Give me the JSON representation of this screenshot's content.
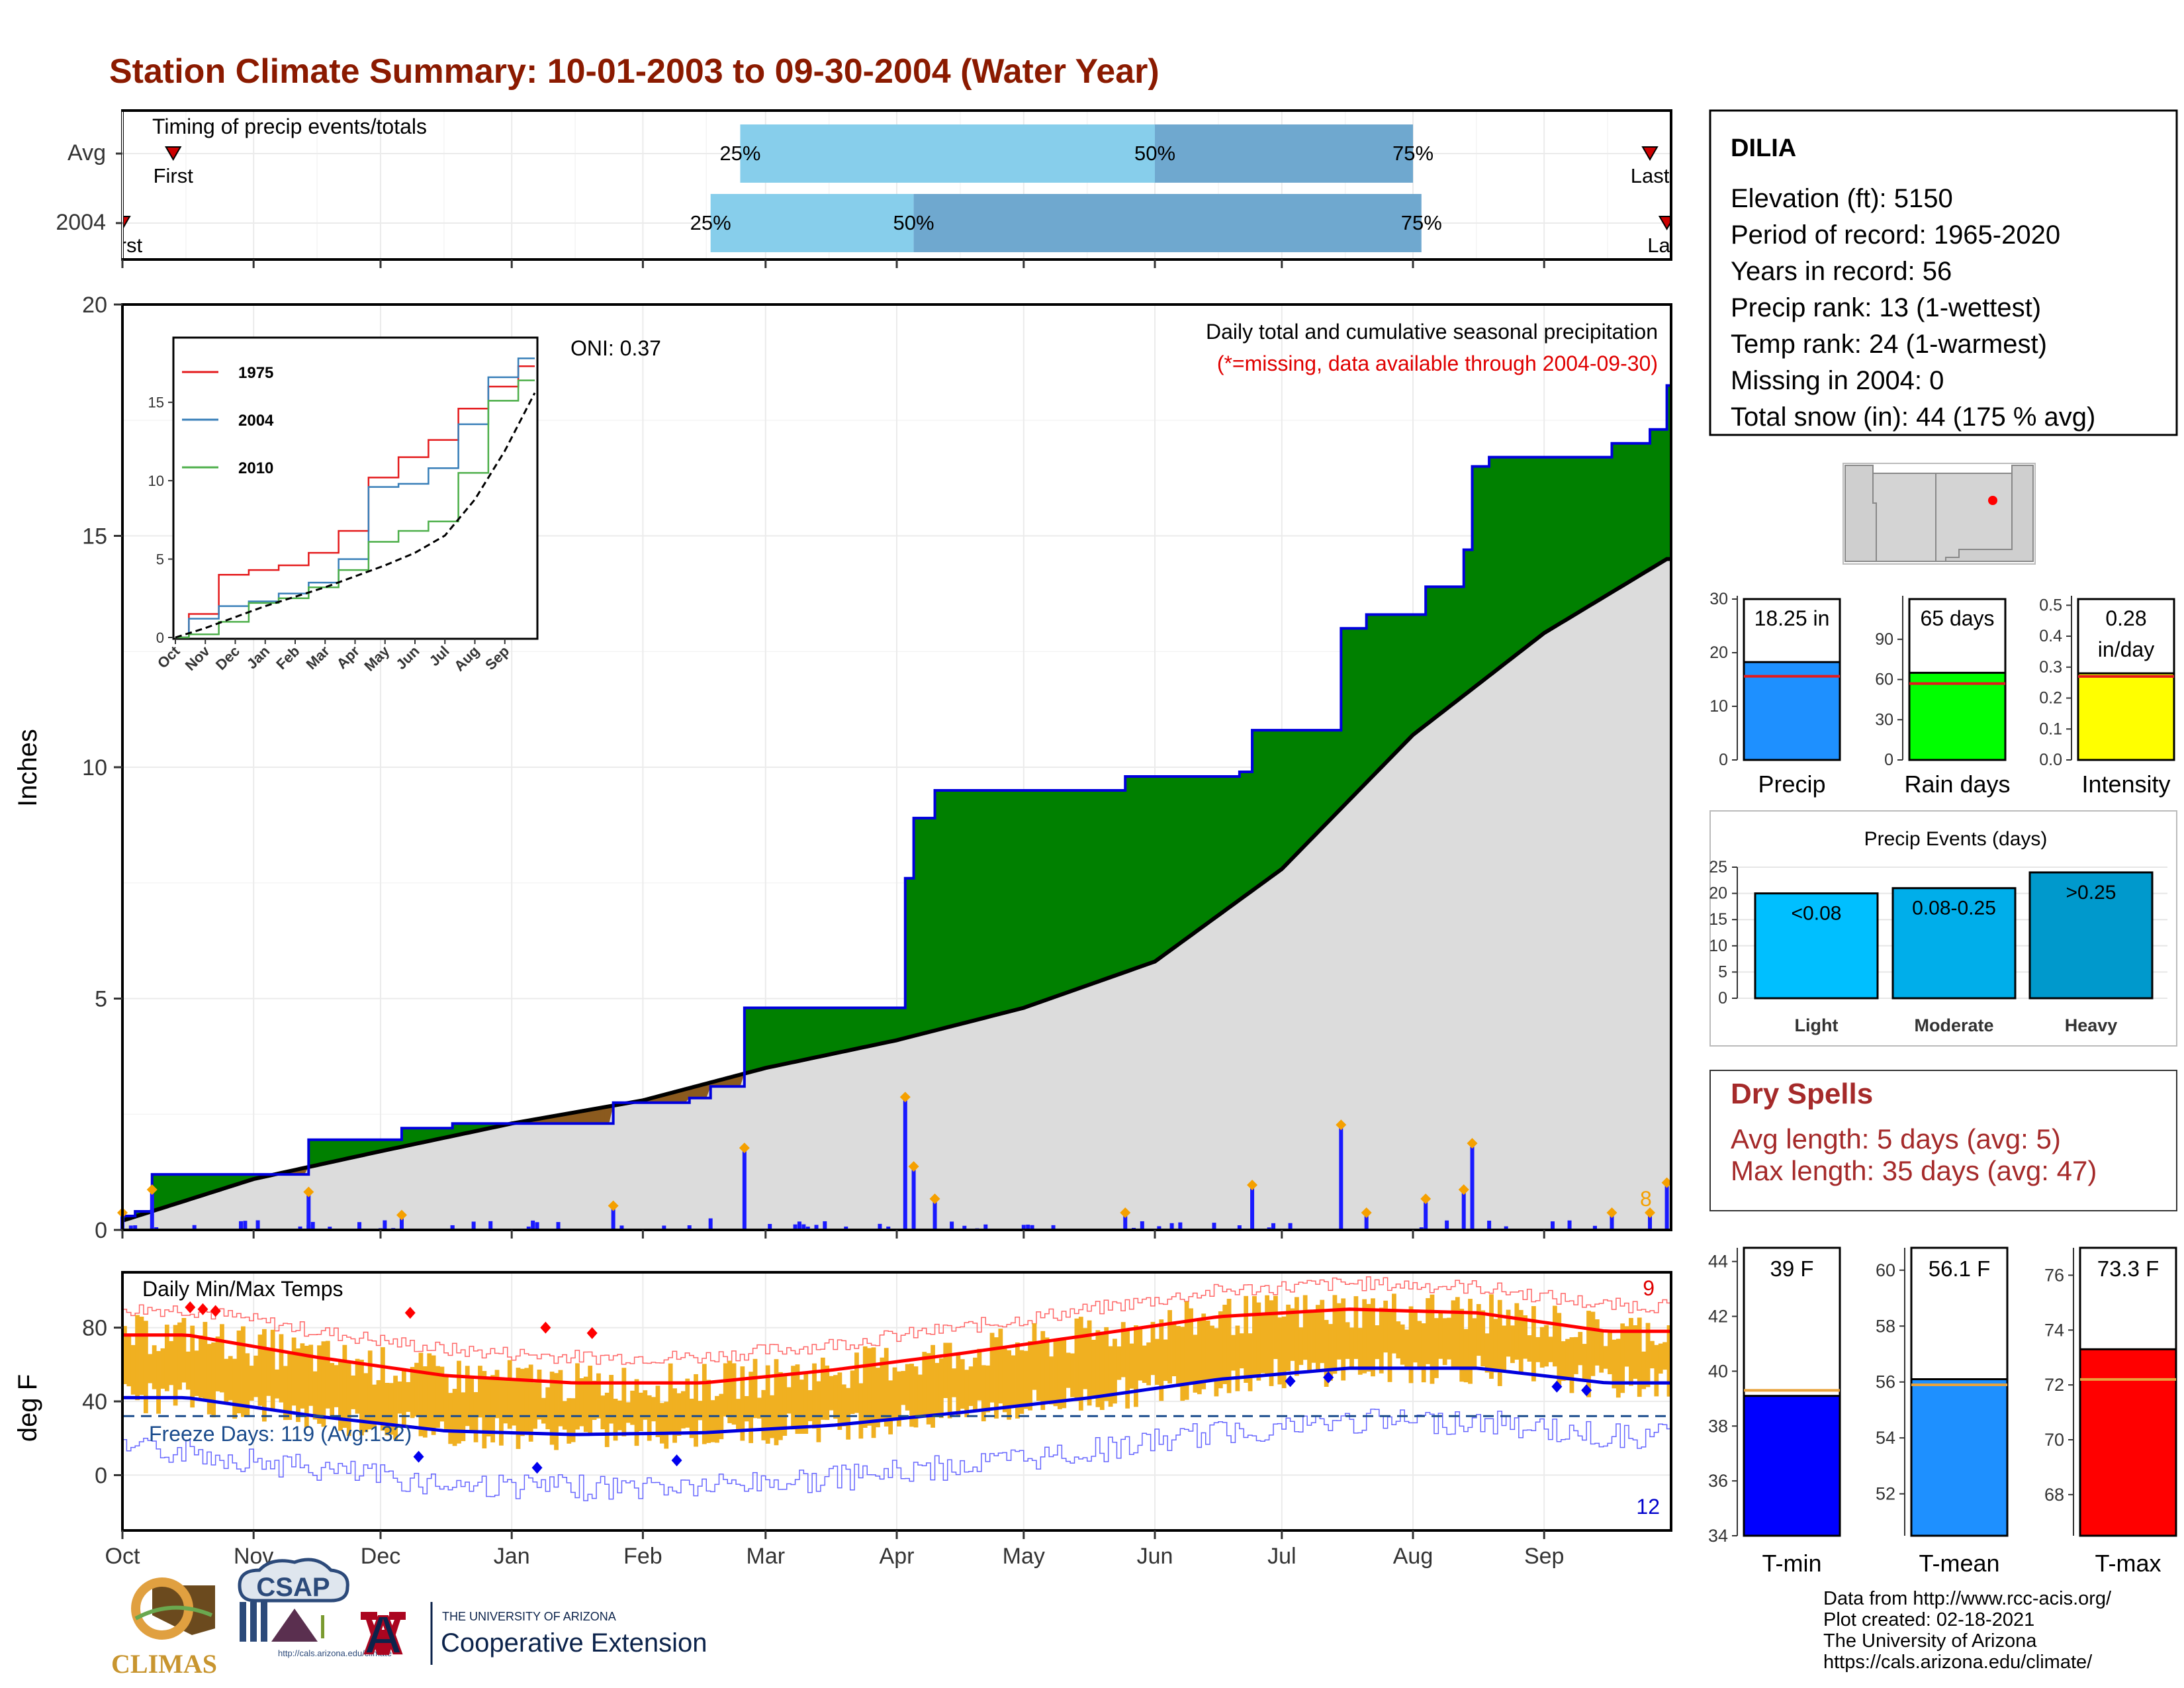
{
  "title": "Station Climate Summary: 10-01-2003 to 09-30-2004 (Water Year)",
  "timing": {
    "label": "Timing of precip events/totals",
    "rows": [
      {
        "name": "Avg",
        "first_label": "First",
        "last_label": "Last",
        "p25": "25%",
        "p50": "50%",
        "p75": "75%",
        "first": "Oct 13",
        "d25": "Feb 24",
        "d50": "Jun 1",
        "d75": "Aug 1",
        "last": "Sep 26"
      },
      {
        "name": "2004",
        "first_label": "First",
        "last_label": "Last",
        "p25": "25%",
        "p50": "50%",
        "p75": "75%",
        "first": "Oct 1",
        "d25": "Feb 17",
        "d50": "Apr 5",
        "d75": "Aug 3",
        "last": "Sep 30"
      }
    ],
    "colors": {
      "light": "#87ceeb",
      "dark": "#6fa8cf",
      "marker": "#cc0000"
    }
  },
  "month_labels": [
    "Oct",
    "Nov",
    "Dec",
    "Jan",
    "Feb",
    "Mar",
    "Apr",
    "May",
    "Jun",
    "Jul",
    "Aug",
    "Sep"
  ],
  "precip_panel": {
    "ylabel": "Inches",
    "title1": "Daily total and cumulative seasonal precipitation",
    "title2": "(*=missing, data available through 2004-09-30)",
    "oni": "ONI: 0.37",
    "count_label": "8",
    "yticks": [
      "0",
      "5",
      "10",
      "15",
      "20"
    ],
    "colors": {
      "green": "#008000",
      "brown": "#8b5a1e",
      "grey": "#dcdcdc",
      "line": "#0000dd",
      "bar": "#1a1aff"
    }
  },
  "inset": {
    "legend": [
      {
        "name": "1975",
        "color": "#e41a1c"
      },
      {
        "name": "2004",
        "color": "#377eb8"
      },
      {
        "name": "2010",
        "color": "#4daf4a"
      }
    ],
    "yticks": [
      "0",
      "5",
      "10",
      "15"
    ],
    "xticks": [
      "Oct",
      "Nov",
      "Dec",
      "Jan",
      "Feb",
      "Mar",
      "Apr",
      "May",
      "Jun",
      "Jul",
      "Aug",
      "Sep"
    ]
  },
  "temp_panel": {
    "ylabel": "deg F",
    "title": "Daily Min/Max Temps",
    "freeze": "Freeze Days: 119 (Avg:132)",
    "count_high": "9",
    "count_low": "12",
    "yticks": [
      "0",
      "40",
      "80"
    ]
  },
  "station": {
    "name": "DILIA",
    "lines": [
      "Elevation (ft): 5150",
      "Period of record: 1965-2020",
      "Years in record: 56",
      "Precip rank: 13 (1-wettest)",
      "Temp rank: 24 (1-warmest)",
      "Missing in 2004: 0",
      "Total snow (in): 44 (175 % avg)"
    ]
  },
  "mini_bars": [
    {
      "label": "Precip",
      "value_text": "18.25 in",
      "value": 18.25,
      "avg": 15.6,
      "ymax": 30,
      "ticks": [
        "0",
        "10",
        "20",
        "30"
      ],
      "color": "#1e90ff"
    },
    {
      "label": "Rain days",
      "value_text": "65 days",
      "value": 65,
      "avg": 57,
      "ymax": 120,
      "ticks": [
        "0",
        "30",
        "60",
        "90"
      ],
      "color": "#00ff00"
    },
    {
      "label": "Intensity",
      "value_text": "0.28 in/day",
      "value_line1": "0.28",
      "value_line2": "in/day",
      "value": 0.28,
      "avg": 0.27,
      "ymax": 0.52,
      "ticks": [
        "0.0",
        "0.1",
        "0.2",
        "0.3",
        "0.4",
        "0.5"
      ],
      "color": "#ffff00"
    }
  ],
  "events": {
    "title": "Precip Events (days)",
    "yticks": [
      "0",
      "5",
      "10",
      "15",
      "20",
      "25"
    ],
    "bars": [
      {
        "label": "Light",
        "range": "<0.08",
        "value": 20,
        "color": "#00bfff"
      },
      {
        "label": "Moderate",
        "range": "0.08-0.25",
        "value": 21,
        "color": "#00aeea"
      },
      {
        "label": "Heavy",
        "range": ">0.25",
        "value": 24,
        "color": "#0099cc"
      }
    ]
  },
  "dry_spells": {
    "title": "Dry Spells",
    "avg": "Avg length: 5 days (avg: 5)",
    "max": "Max length: 35 days (avg: 47)"
  },
  "temp_bars": [
    {
      "label": "T-min",
      "value_text": "39 F",
      "value": 39.1,
      "avg": 39.3,
      "ymin": 34,
      "ymax": 44.5,
      "ticks": [
        "34",
        "36",
        "38",
        "40",
        "42",
        "44"
      ],
      "color": "#0000ff"
    },
    {
      "label": "T-mean",
      "value_text": "56.1 F",
      "value": 56.1,
      "avg": 55.9,
      "ymin": 50.5,
      "ymax": 60.8,
      "ticks": [
        "52",
        "54",
        "56",
        "58",
        "60"
      ],
      "color": "#1e90ff"
    },
    {
      "label": "T-max",
      "value_text": "73.3 F",
      "value": 73.3,
      "avg": 72.2,
      "ymin": 66.5,
      "ymax": 77.0,
      "ticks": [
        "68",
        "70",
        "72",
        "74",
        "76"
      ],
      "color": "#ff0000"
    }
  ],
  "footer": {
    "lines": [
      "Data from http://www.rcc-acis.org/",
      "Plot created: 02-18-2021",
      "The University of Arizona",
      "https://cals.arizona.edu/climate/"
    ]
  },
  "logos": {
    "climas": "CLIMAS",
    "csap": "CSAP",
    "csap_url": "http://cals.arizona.edu/climate",
    "ua_line1": "THE UNIVERSITY OF ARIZONA",
    "ua_line2": "Cooperative Extension",
    "ua_letter": "A"
  },
  "chart_data": [
    {
      "type": "area",
      "title": "Daily total and cumulative seasonal precipitation",
      "ylabel": "Inches",
      "ylim": [
        0,
        20
      ],
      "series": [
        {
          "name": "",
          "x": [
            "2003-10-01",
            "2003-10-04",
            "2003-10-08",
            "2003-11-14",
            "2003-12-06",
            "2003-12-18",
            "2004-01-25",
            "2004-02-12",
            "2004-02-17",
            "2004-02-25",
            "2004-04-03",
            "2004-04-05",
            "2004-04-10",
            "2004-05-25",
            "2004-06-21",
            "2004-06-24",
            "2004-07-15",
            "2004-07-21",
            "2004-08-04",
            "2004-08-13",
            "2004-08-15",
            "2004-08-19",
            "2004-09-17",
            "2004-09-26",
            "2004-09-30"
          ],
          "values": [
            0.3,
            0.4,
            1.2,
            1.95,
            2.2,
            2.3,
            2.75,
            2.85,
            3.1,
            4.8,
            7.6,
            8.9,
            9.5,
            9.8,
            9.9,
            10.8,
            13.0,
            13.3,
            13.9,
            14.7,
            16.5,
            16.7,
            17.0,
            17.3,
            18.25
          ]
        },
        {
          "name": "",
          "x": [
            "2003-10-01",
            "2003-11-01",
            "2003-12-01",
            "2004-01-01",
            "2004-02-01",
            "2004-03-01",
            "2004-04-01",
            "2004-05-01",
            "2004-06-01",
            "2004-07-01",
            "2004-08-01",
            "2004-09-01",
            "2004-09-30"
          ],
          "values": [
            0.2,
            1.1,
            1.7,
            2.3,
            2.8,
            3.5,
            4.1,
            4.8,
            5.8,
            7.8,
            10.7,
            12.9,
            14.5
          ]
        }
      ]
    },
    {
      "type": "line",
      "title": "",
      "xlabel": "",
      "ylabel": "",
      "categories": [
        "Oct",
        "Nov",
        "Dec",
        "Jan",
        "Feb",
        "Mar",
        "Apr",
        "May",
        "Jun",
        "Jul",
        "Aug",
        "Sep"
      ],
      "ylim": [
        0,
        19
      ],
      "series": [
        {
          "name": "1975",
          "values": [
            1.5,
            4.0,
            4.3,
            4.6,
            5.4,
            6.8,
            10.2,
            11.5,
            12.6,
            14.6,
            16.0,
            17.3
          ]
        },
        {
          "name": "2004",
          "values": [
            1.2,
            2.0,
            2.3,
            2.8,
            3.5,
            5.0,
            9.6,
            9.8,
            10.8,
            13.6,
            16.6,
            17.8
          ]
        },
        {
          "name": "2010",
          "values": [
            0.2,
            1.0,
            2.2,
            2.5,
            3.2,
            4.3,
            6.1,
            6.8,
            7.4,
            10.5,
            15.1,
            16.4
          ]
        },
        {
          "name": "",
          "values": [
            0.6,
            1.3,
            2.0,
            2.6,
            3.2,
            3.9,
            4.6,
            5.4,
            6.5,
            8.8,
            11.9,
            15.6
          ]
        }
      ]
    },
    {
      "type": "line",
      "title": "Daily Min/Max Temps",
      "ylabel": "deg F",
      "categories": [
        "Oct",
        "Nov",
        "Dec",
        "Jan",
        "Feb",
        "Mar",
        "Apr",
        "May",
        "Jun",
        "Jul",
        "Aug",
        "Sep"
      ],
      "ylim": [
        -30,
        110
      ],
      "series": [
        {
          "name": "",
          "values": [
            76,
            64,
            54,
            50,
            50,
            57,
            66,
            76,
            86,
            90,
            88,
            78
          ]
        },
        {
          "name": "",
          "values": [
            42,
            32,
            24,
            22,
            23,
            27,
            34,
            42,
            52,
            58,
            58,
            50
          ]
        },
        {
          "name": "",
          "values": [
            32,
            32,
            32,
            32,
            32,
            32,
            32,
            32,
            32,
            32,
            32,
            32
          ]
        }
      ]
    },
    {
      "type": "bar",
      "title": "",
      "categories": [
        "Precip",
        "Rain days",
        "Intensity"
      ],
      "values": [
        18.25,
        65,
        0.28
      ]
    },
    {
      "type": "bar",
      "title": "Precip Events (days)",
      "categories": [
        "Light",
        "Moderate",
        "Heavy"
      ],
      "values": [
        20,
        21,
        24
      ],
      "ylim": [
        0,
        25
      ]
    },
    {
      "type": "bar",
      "title": "",
      "categories": [
        "T-min",
        "T-mean",
        "T-max"
      ],
      "values": [
        39.1,
        56.1,
        73.3
      ]
    }
  ]
}
